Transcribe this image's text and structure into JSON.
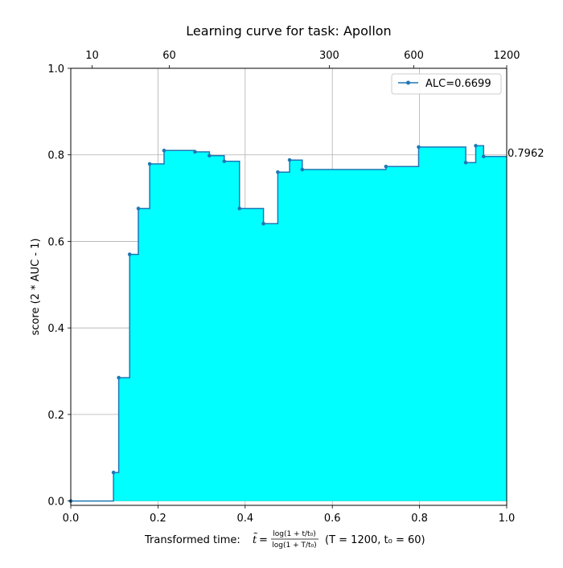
{
  "chart_data": {
    "type": "area",
    "title": "Learning curve for task: Apollon",
    "ylabel": "score (2 * AUC - 1)",
    "xlabel": {
      "prefix": "Transformed time: ",
      "t_tilde": "t̃",
      "equals": " = ",
      "frac_num": "log(1 + t/t₀)",
      "frac_den": "log(1 + T/t₀)",
      "params": "(T = 1200,  t₀ = 60)"
    },
    "xlim": [
      0.0,
      1.0
    ],
    "ylim": [
      -0.01,
      1.0
    ],
    "x_ticks": [
      "0.0",
      "0.2",
      "0.4",
      "0.6",
      "0.8",
      "1.0"
    ],
    "y_ticks": [
      "0.0",
      "0.2",
      "0.4",
      "0.6",
      "0.8",
      "1.0"
    ],
    "top_ticks": [
      {
        "x": 0.049,
        "label": "10"
      },
      {
        "x": 0.226,
        "label": "60"
      },
      {
        "x": 0.593,
        "label": "300"
      },
      {
        "x": 0.787,
        "label": "600"
      },
      {
        "x": 1.0,
        "label": "1200"
      }
    ],
    "grid": true,
    "legend": {
      "position": "top-right",
      "entries": [
        {
          "label": "ALC=0.6699",
          "color": "#1f77b4"
        }
      ]
    },
    "final_score_label": "0.7962",
    "series": [
      {
        "name": "ALC=0.6699",
        "x": [
          0.0,
          0.098,
          0.11,
          0.135,
          0.155,
          0.181,
          0.214,
          0.285,
          0.318,
          0.352,
          0.387,
          0.442,
          0.475,
          0.502,
          0.531,
          0.723,
          0.798,
          0.906,
          0.929,
          0.947
        ],
        "y": [
          0.0,
          0.066,
          0.285,
          0.57,
          0.676,
          0.779,
          0.81,
          0.807,
          0.798,
          0.785,
          0.676,
          0.641,
          0.76,
          0.788,
          0.766,
          0.773,
          0.818,
          0.782,
          0.821,
          0.7962
        ]
      }
    ],
    "colors": {
      "line": "#1f77b4",
      "fill": "#00ffff",
      "grid": "#b0b0b0"
    }
  }
}
